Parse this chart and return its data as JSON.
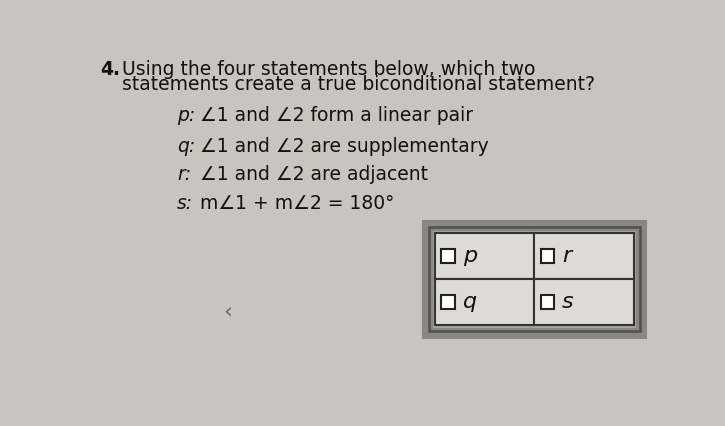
{
  "question_number": "4.",
  "question_line1": "Using the four statements below, which two",
  "question_line2": "statements create a true biconditional statement?",
  "statements": [
    {
      "label": "p:",
      "text": "∠1 and ∠2 form a linear pair"
    },
    {
      "label": "q:",
      "text": "∠1 and ∠2 are supplementary"
    },
    {
      "label": "r:",
      "text": "∠1 and ∠2 are adjacent"
    },
    {
      "label": "s:",
      "text": "m∠1 + m∠2 = 180°"
    }
  ],
  "grid_labels": [
    "p",
    "r",
    "q",
    "s"
  ],
  "background_color": "#c8c5bf",
  "text_color": "#111111",
  "grid_outer_color": "#888880",
  "grid_cell_bg": "#dedad4",
  "grid_outer_bg": "#a8a49e",
  "title_fontsize": 13.5,
  "statement_fontsize": 13.5
}
